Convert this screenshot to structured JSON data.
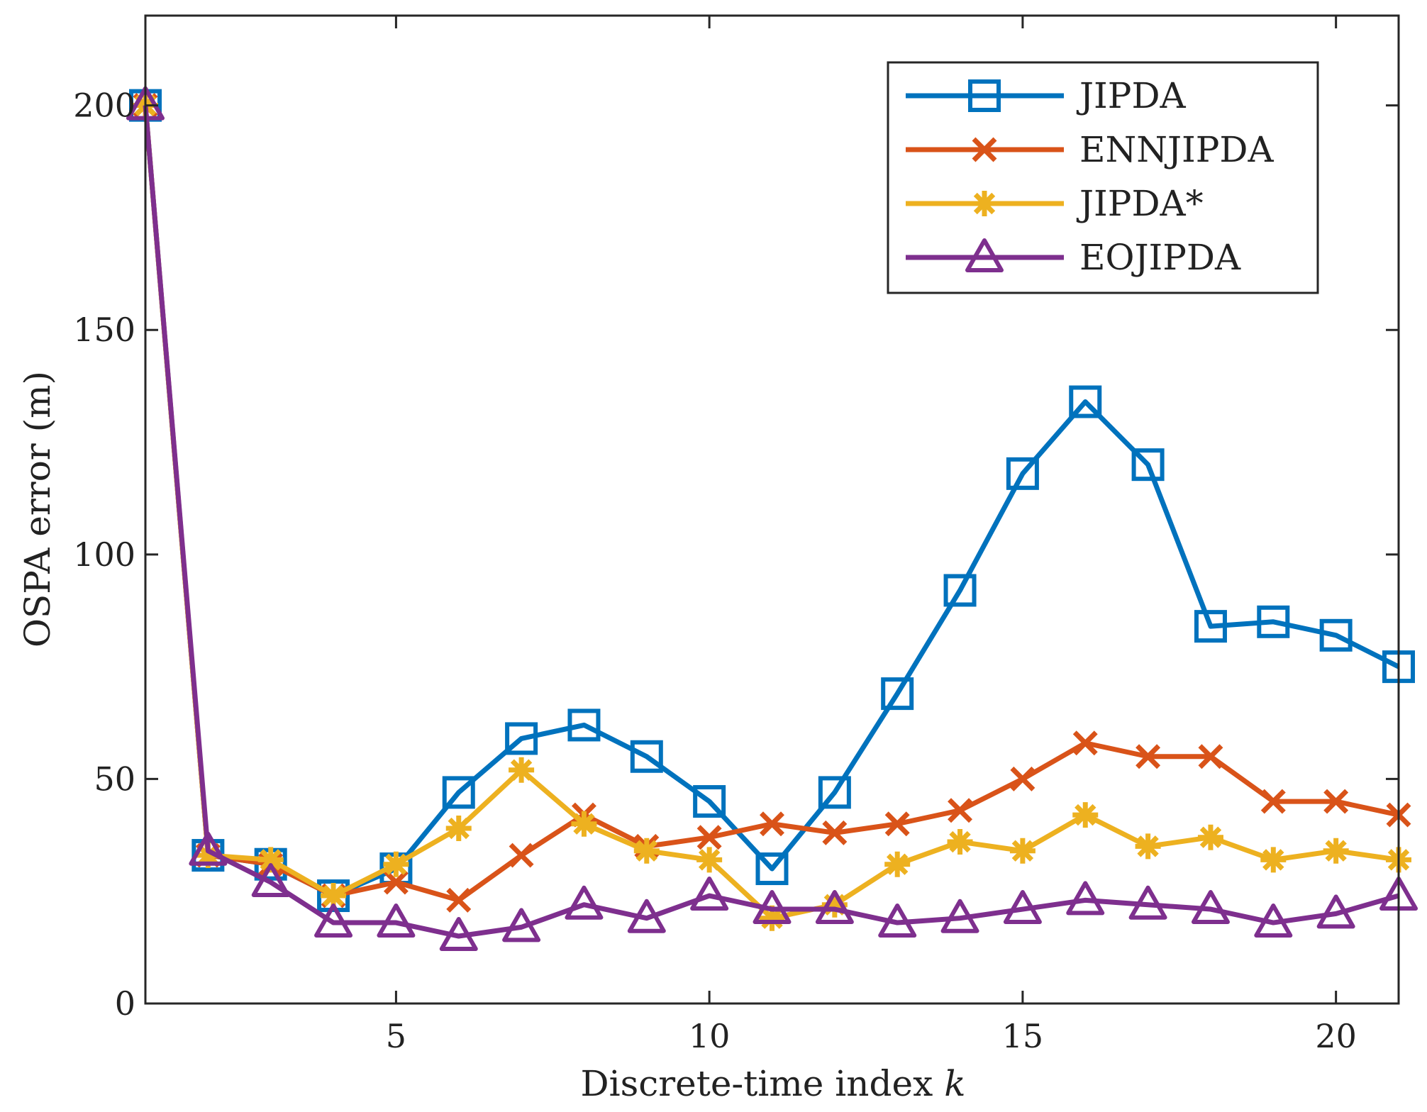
{
  "chart_data": {
    "type": "line",
    "title": "",
    "xlabel": "Discrete-time index",
    "xlabel_var": "k",
    "ylabel": "OSPA error (m)",
    "xlim": [
      1,
      21
    ],
    "ylim": [
      0,
      220
    ],
    "xticks": [
      5,
      10,
      15,
      20
    ],
    "yticks": [
      0,
      50,
      100,
      150,
      200
    ],
    "grid": false,
    "legend_position": "top-right",
    "x": [
      1,
      2,
      3,
      4,
      5,
      6,
      7,
      8,
      9,
      10,
      11,
      12,
      13,
      14,
      15,
      16,
      17,
      18,
      19,
      20,
      21
    ],
    "series": [
      {
        "name": "JIPDA",
        "color": "#0072BD",
        "marker": "square",
        "values": [
          200,
          33,
          31,
          24,
          30,
          47,
          59,
          62,
          55,
          45,
          30,
          47,
          69,
          92,
          118,
          134,
          120,
          84,
          85,
          82,
          75
        ]
      },
      {
        "name": "ENNJIPDA",
        "color": "#D95319",
        "marker": "x",
        "values": [
          200,
          33,
          31,
          24,
          27,
          23,
          33,
          42,
          35,
          37,
          40,
          38,
          40,
          43,
          50,
          58,
          55,
          55,
          45,
          45,
          42
        ]
      },
      {
        "name": "JIPDA*",
        "color": "#EDB120",
        "marker": "asterisk",
        "values": [
          200,
          33,
          32,
          24,
          31,
          39,
          52,
          40,
          34,
          32,
          19,
          22,
          31,
          36,
          34,
          42,
          35,
          37,
          32,
          34,
          32
        ]
      },
      {
        "name": "EOJIPDA",
        "color": "#7E2F8E",
        "marker": "triangle",
        "values": [
          200,
          34,
          27,
          18,
          18,
          15,
          17,
          22,
          19,
          24,
          21,
          21,
          18,
          19,
          21,
          23,
          22,
          21,
          18,
          20,
          24
        ]
      }
    ]
  }
}
